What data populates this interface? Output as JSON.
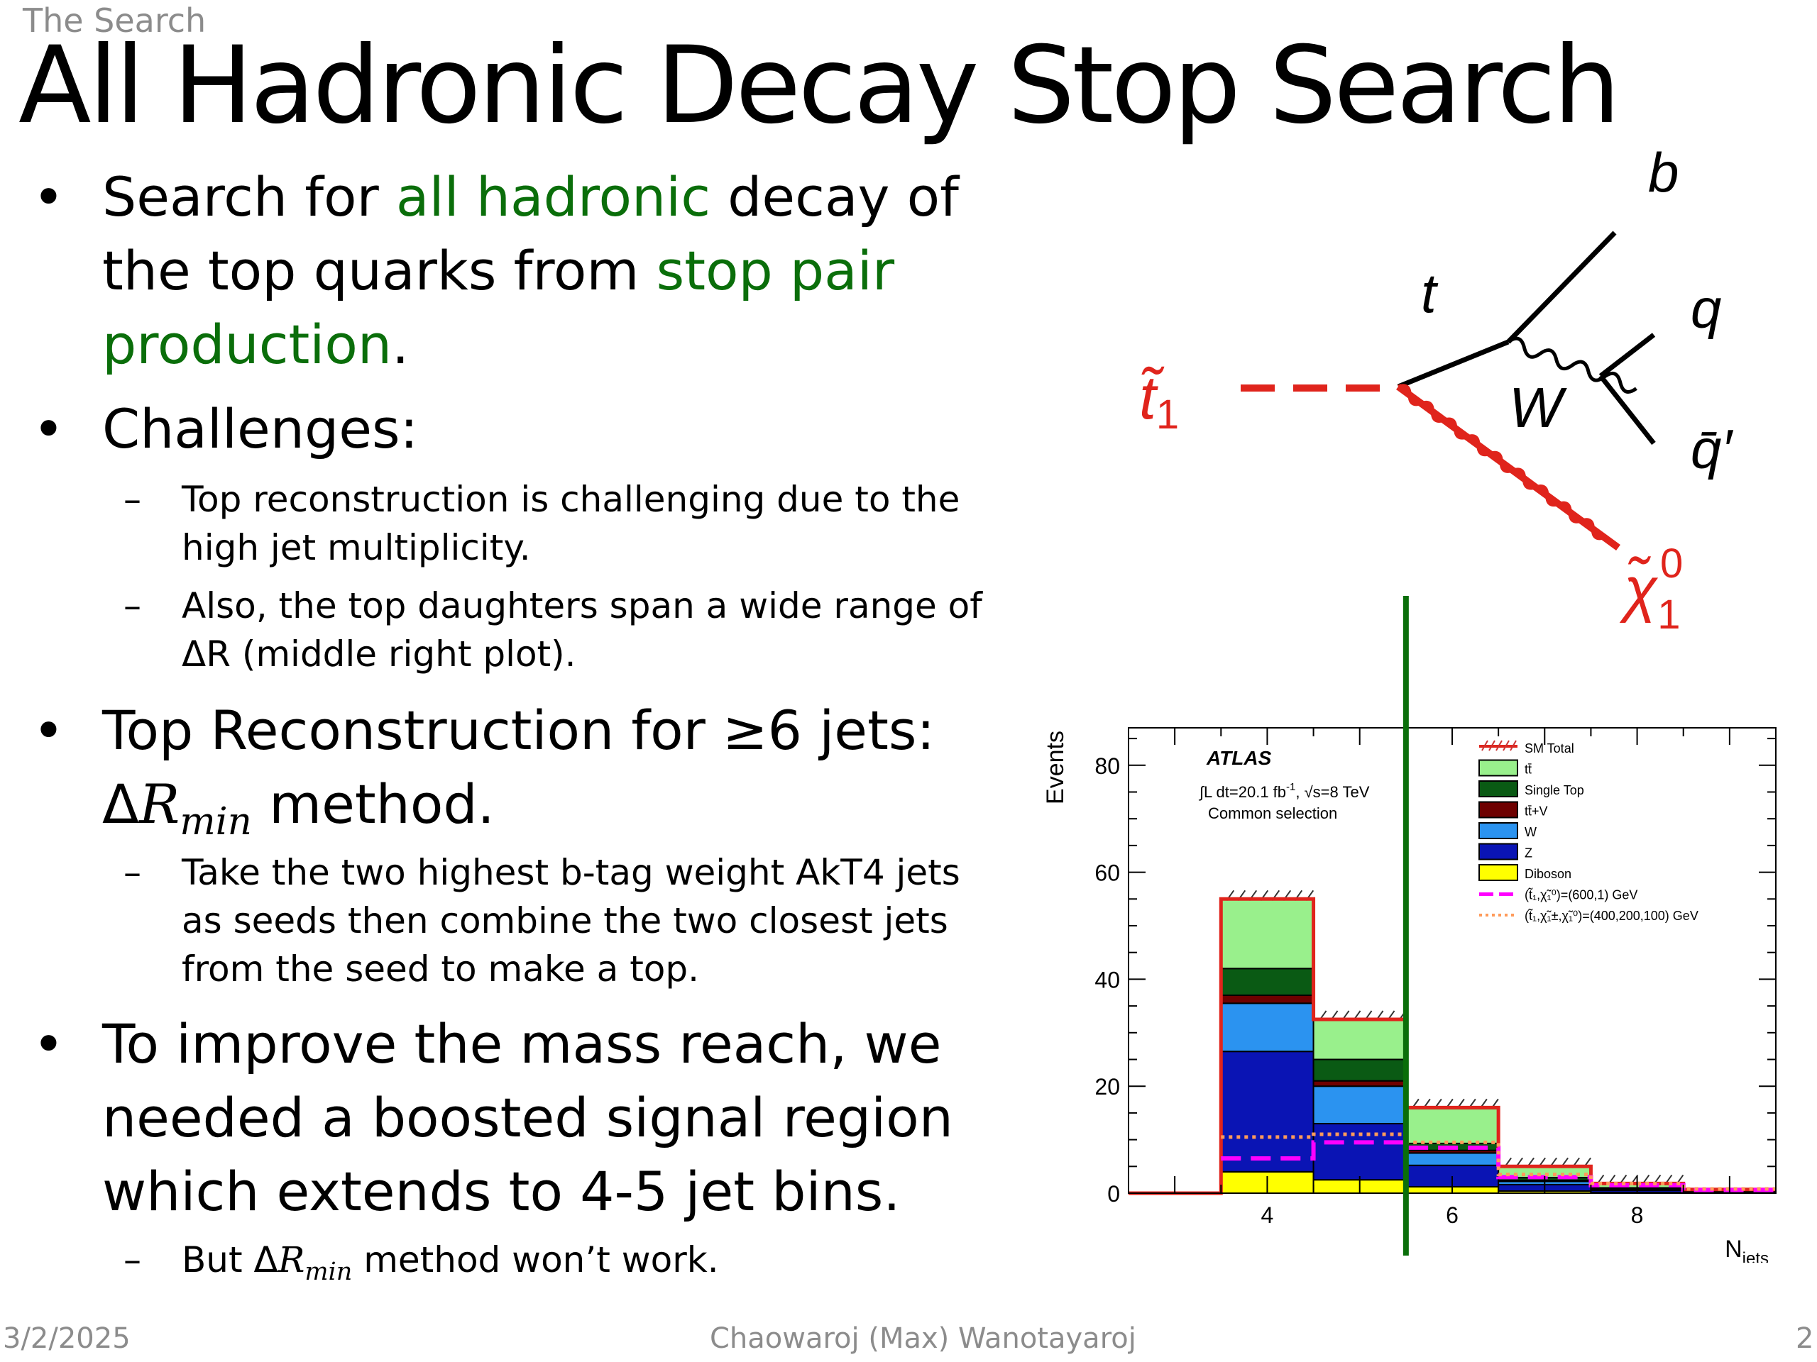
{
  "slide": {
    "section": "The Search",
    "title": "All Hadronic Decay Stop Search"
  },
  "bullets": {
    "b1": {
      "part1": "Search for ",
      "hl1": "all hadronic",
      "part2": " decay of the top quarks from ",
      "hl2": "stop pair production",
      "part3": "."
    },
    "b2": {
      "text": "Challenges:",
      "sub1": "Top reconstruction is challenging due to the high jet multiplicity.",
      "sub2": "Also, the top daughters span a wide range of ΔR (middle right plot)."
    },
    "b3": {
      "line1": "Top Reconstruction for ≥6 jets:",
      "delta": "Δ",
      "r": "R",
      "sub": "min",
      "line2": " method.",
      "sub1": "Take the two highest b-tag weight AkT4 jets as seeds then combine the two closest jets from the seed to make a top."
    },
    "b4": {
      "text": "To improve the mass reach, we needed a boosted signal region which extends to 4-5 jet bins.",
      "sub1_pre": "But Δ",
      "sub1_r": "R",
      "sub1_sub": "min",
      "sub1_post": " method won’t work."
    },
    "bullet_symbol": "•",
    "dash_symbol": "–"
  },
  "diagram": {
    "stop": "t̃",
    "stop_sub": "1",
    "top": "t",
    "b": "b",
    "W": "W",
    "q": "q",
    "qbar": "q̄′",
    "neutralino": "χ̃",
    "neutralino_sup": "0",
    "neutralino_sub": "1",
    "red": "#e0241c"
  },
  "chart_data": {
    "type": "bar",
    "stacked": true,
    "categories": [
      "3",
      "4",
      "5",
      "6",
      "7",
      "8",
      "9"
    ],
    "x_centers": [
      3,
      4,
      5,
      6,
      7,
      8,
      9
    ],
    "xlim": [
      2.5,
      9.5
    ],
    "ylim": [
      0,
      87
    ],
    "xticks": [
      4,
      6,
      8
    ],
    "yticks": [
      0,
      20,
      40,
      60,
      80
    ],
    "xlabel": "N",
    "xlabel_sub": "jets",
    "ylabel": "Events",
    "atlas": {
      "label": "ATLAS",
      "lumi_pre": "∫L dt=20.1 fb",
      "lumi_exp": "-1",
      "lumi_post": ", √s=8 TeV",
      "selection": "Common selection"
    },
    "legend_position": "top-right",
    "series": [
      {
        "name": "Diboson",
        "color": "#ffff00",
        "values": [
          0,
          4,
          2.5,
          1.2,
          0.4,
          0.15,
          0.05
        ]
      },
      {
        "name": "Z",
        "color": "#0a14b4",
        "values": [
          0,
          22.5,
          10.5,
          4,
          1.2,
          0.4,
          0.1
        ]
      },
      {
        "name": "W",
        "color": "#2b93f0",
        "values": [
          0,
          9,
          7,
          2.3,
          0.6,
          0.2,
          0.05
        ]
      },
      {
        "name": "tt̄+V",
        "color": "#6e0000",
        "values": [
          0,
          1.5,
          1,
          0.5,
          0.2,
          0.05,
          0.02
        ]
      },
      {
        "name": "Single Top",
        "color": "#0a5a14",
        "values": [
          0,
          5,
          4,
          1.3,
          0.5,
          0.2,
          0.05
        ]
      },
      {
        "name": "tt̄",
        "color": "#99f08c",
        "values": [
          0,
          13,
          7.5,
          6.5,
          2.1,
          0.8,
          0.4
        ]
      }
    ],
    "total": {
      "name": "SM Total",
      "color": "#e0241c",
      "values": [
        0,
        55,
        32.5,
        16,
        5,
        1.8,
        0.7
      ]
    },
    "signals": [
      {
        "name": "(t̃₁,χ̃₁⁰)=(600,1) GeV",
        "color": "#ff00ff",
        "values": [
          0,
          6.5,
          9.5,
          8.5,
          3,
          1.5,
          0.6
        ]
      },
      {
        "name": "(t̃₁,χ̃₁±,χ̃₁⁰)=(400,200,100) GeV",
        "color": "#ff9b5a",
        "values": [
          0,
          10.5,
          11,
          9.5,
          3.5,
          1.8,
          0.8
        ]
      }
    ],
    "legend_order": [
      "SM Total",
      "tt̄",
      "Single Top",
      "tt̄+V",
      "W",
      "Z",
      "Diboson",
      "(t̃₁,χ̃₁⁰)=(600,1) GeV",
      "(t̃₁,χ̃₁±,χ̃₁⁰)=(400,200,100) GeV"
    ],
    "cut_line_x": 5.5,
    "cut_line_color": "#0a6e0a"
  },
  "footer": {
    "date": "3/2/2025",
    "author": "Chaowaroj (Max) Wanotayaroj",
    "page": "2"
  }
}
